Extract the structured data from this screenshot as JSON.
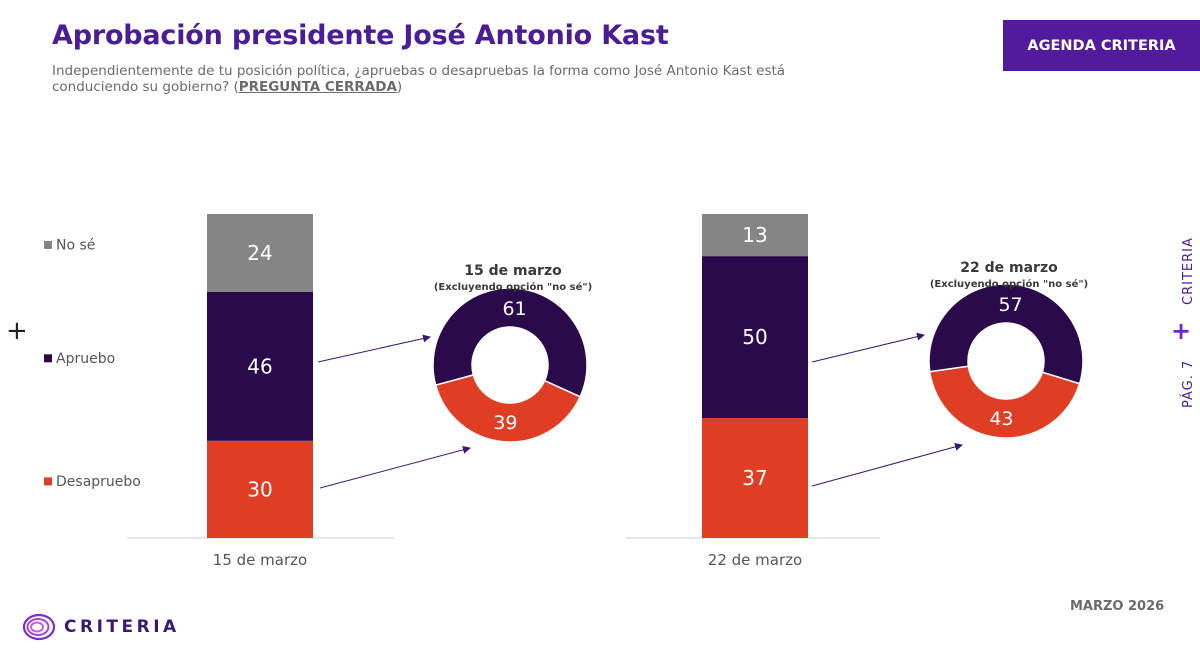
{
  "header": {
    "title": "Aprobación presidente José Antonio Kast",
    "subtitle_text": "Independientemente de tu posición política, ¿apruebas o desapruebas la forma como José Antonio Kast está conduciendo su gobierno? (",
    "subtitle_closed": "PREGUNTA CERRADA",
    "subtitle_end": ")",
    "badge": "AGENDA CRITERIA"
  },
  "side": {
    "brand": "CRITERIA",
    "page": "PÁG. 7",
    "plus": "+"
  },
  "footer": {
    "date": "MARZO 2026",
    "logo": "CRITERIA"
  },
  "left_plus": "+",
  "colors": {
    "no_se": "#858585",
    "apruebo": "#2a0a4a",
    "desapruebo": "#e03e24",
    "accent": "#521a9c"
  },
  "chart_data": [
    {
      "type": "bar",
      "stacked": true,
      "legend_position": "left",
      "categories": [
        "15 de marzo",
        "22 de marzo"
      ],
      "series": [
        {
          "name": "Desapruebo",
          "values": [
            30,
            37
          ]
        },
        {
          "name": "Apruebo",
          "values": [
            46,
            50
          ]
        },
        {
          "name": "No sé",
          "values": [
            24,
            13
          ]
        }
      ]
    },
    {
      "type": "pie",
      "donut": true,
      "title": "15 de marzo",
      "subtitle": "(Excluyendo opción \"no sé\")",
      "labels": [
        "Apruebo",
        "Desapruebo"
      ],
      "values": [
        61,
        39
      ]
    },
    {
      "type": "pie",
      "donut": true,
      "title": "22 de marzo",
      "subtitle": "(Excluyendo opción \"no sé\")",
      "labels": [
        "Apruebo",
        "Desapruebo"
      ],
      "values": [
        57,
        43
      ]
    }
  ]
}
